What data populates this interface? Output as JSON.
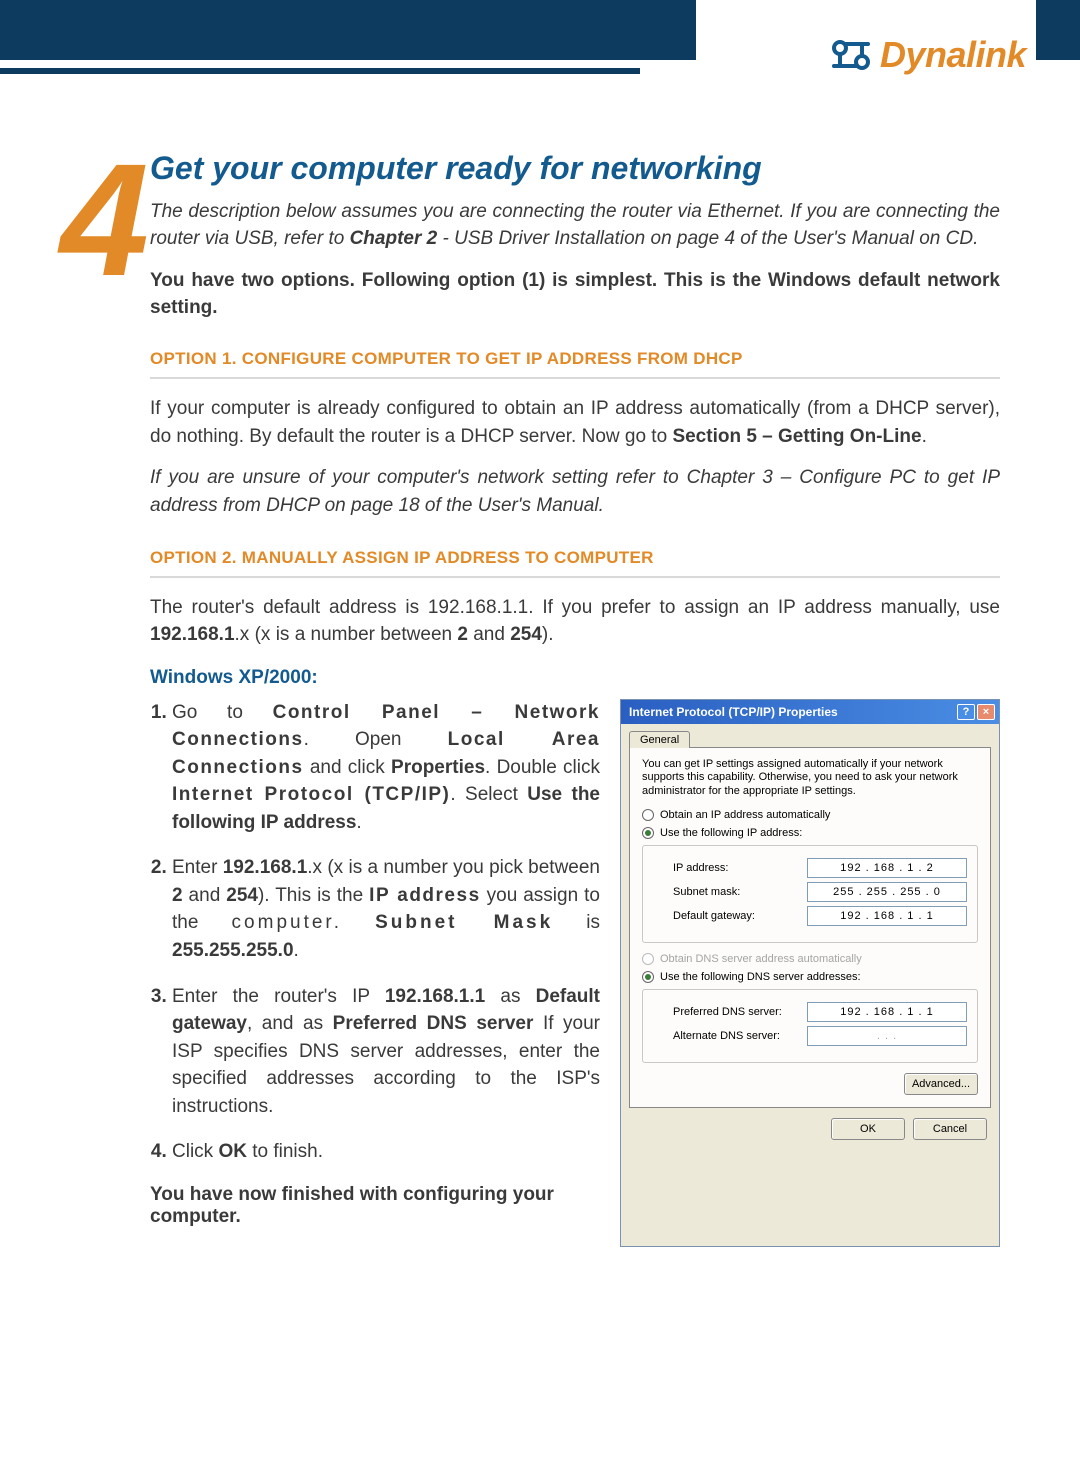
{
  "brand": {
    "name": "Dynalink",
    "color": "#e28a27",
    "navy": "#0d3a5f",
    "blue": "#135a8f"
  },
  "section_number": "4",
  "title": "Get your computer ready for networking",
  "intro_html": "The description below assumes you are connecting the router via Ethernet. If you are connecting the router via USB, refer to <b>Chapter 2</b> - USB Driver Installation on page 4 of the User's Manual on CD.",
  "lead_bold": "You have two options. Following option (1) is simplest. This is the Windows default network setting.",
  "option1": {
    "heading": "OPTION 1. CONFIGURE COMPUTER TO GET IP ADDRESS FROM DHCP",
    "p1_html": "If your computer is already configured to obtain an IP address automatically (from a DHCP server), do nothing. By default the router is a DHCP server. Now go to <b>Section 5 – Getting On-Line</b>.",
    "p2_italic": "If you are unsure of your computer's network setting refer to Chapter 3 – Configure PC to get IP address from DHCP on page 18 of the User's Manual."
  },
  "option2": {
    "heading": "OPTION 2. MANUALLY ASSIGN IP ADDRESS TO COMPUTER",
    "p1_html": "The router's default address is 192.168.1.1. If you prefer to assign an IP address manually, use <b>192.168.1</b>.x (x is a number between <b>2</b> and <b>254</b>).",
    "winxp_heading": "Windows XP/2000:",
    "steps": [
      "Go to <b class='stretch'>Control Panel – Network Connections</b>. Open <b class='stretch'>Local Area Connections</b> and click <b>Properties</b>. Double click <b class='stretch'>Internet Protocol (TCP/IP)</b>. Select <b>Use the following IP address</b>.",
      "Enter <b>192.168.1</b>.x (x is a number you pick between <b>2</b> and <b>254</b>). This is the <b class='stretch'>IP address</b> you assign to the <span class='stretch2'>computer.</span> <b class='stretch2'>Subnet Mask</b> is <b>255.255.255.0</b>.",
      "Enter the router's IP <b>192.168.1.1</b> as <b>Default gateway</b>, and as <b>Preferred DNS server</b> If your ISP specifies DNS server addresses, enter the specified addresses according to the ISP's instructions.",
      "Click <b>OK</b> to finish."
    ],
    "finished": "You have now finished with configuring your computer."
  },
  "tcpip_dialog": {
    "title": "Internet Protocol (TCP/IP) Properties",
    "tab": "General",
    "desc": "You can get IP settings assigned automatically if your network supports this capability. Otherwise, you need to ask your network administrator for the appropriate IP settings.",
    "radio_ip_auto": "Obtain an IP address automatically",
    "radio_ip_manual": "Use the following IP address:",
    "ip_label": "IP address:",
    "ip_value": "192 . 168 .  1  .  2",
    "subnet_label": "Subnet mask:",
    "subnet_value": "255 . 255 . 255 .  0",
    "gateway_label": "Default gateway:",
    "gateway_value": "192 . 168 .  1  .  1",
    "radio_dns_auto": "Obtain DNS server address automatically",
    "radio_dns_manual": "Use the following DNS server addresses:",
    "pref_dns_label": "Preferred DNS server:",
    "pref_dns_value": "192 . 168 .  1  .  1",
    "alt_dns_label": "Alternate DNS server:",
    "alt_dns_value": " .      .      . ",
    "advanced": "Advanced...",
    "ok": "OK",
    "cancel": "Cancel"
  }
}
